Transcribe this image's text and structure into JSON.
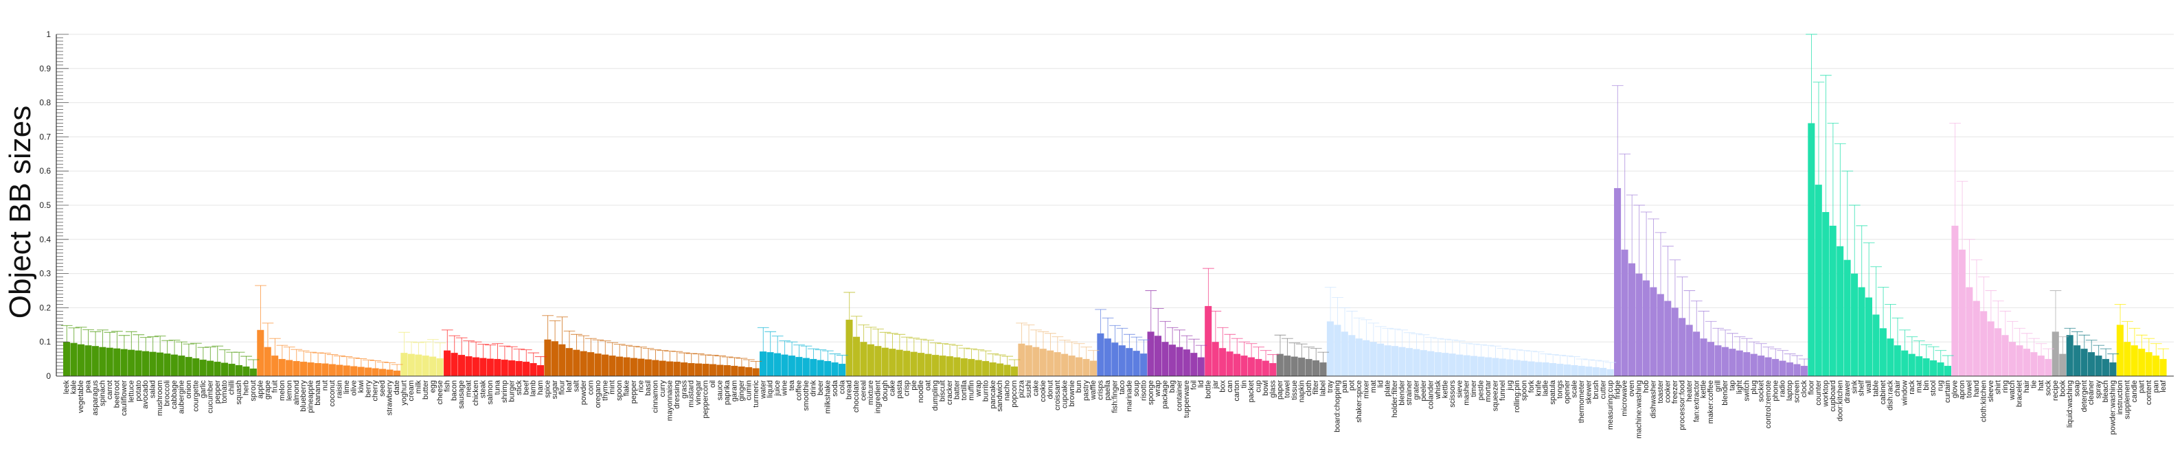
{
  "chart_data": {
    "type": "bar",
    "ylabel": "Object BB sizes",
    "ylim": [
      0,
      1
    ],
    "yticks": [
      "0",
      "0.1",
      "0.2",
      "0.3",
      "0.4",
      "0.5",
      "0.6",
      "0.7",
      "0.8",
      "0.9",
      "1"
    ],
    "grid": true,
    "error_bars": true,
    "groups": [
      {
        "color": "#4b9a09",
        "categories": [
          "leek",
          "kale",
          "vegetable",
          "pea",
          "asparagus",
          "spinach",
          "carrot",
          "beetroot",
          "cauliflower",
          "lettuce",
          "potato",
          "avocado",
          "salad",
          "mushroom",
          "broccoli",
          "cabbage",
          "aubergine",
          "onion",
          "courgette",
          "garlic",
          "cucumber",
          "pepper",
          "tomato",
          "chilli",
          "squash",
          "herb",
          "sprout"
        ],
        "values": [
          0.1,
          0.097,
          0.093,
          0.09,
          0.088,
          0.085,
          0.083,
          0.081,
          0.079,
          0.077,
          0.075,
          0.073,
          0.071,
          0.069,
          0.066,
          0.063,
          0.06,
          0.056,
          0.052,
          0.048,
          0.045,
          0.042,
          0.039,
          0.036,
          0.032,
          0.028,
          0.022
        ],
        "errors": [
          0.048,
          0.044,
          0.05,
          0.046,
          0.042,
          0.05,
          0.045,
          0.05,
          0.04,
          0.053,
          0.046,
          0.04,
          0.044,
          0.048,
          0.038,
          0.042,
          0.04,
          0.038,
          0.044,
          0.036,
          0.04,
          0.046,
          0.038,
          0.034,
          0.038,
          0.03,
          0.026
        ]
      },
      {
        "color": "#fb8d2e",
        "categories": [
          "apple",
          "grape",
          "fruit",
          "melon",
          "lemon",
          "almond",
          "blueberry",
          "pineapple",
          "banana",
          "nut",
          "coconut",
          "raisin",
          "lime",
          "olive",
          "kiwi",
          "berry",
          "cherry",
          "seed",
          "strawberry",
          "date"
        ],
        "values": [
          0.135,
          0.085,
          0.06,
          0.05,
          0.047,
          0.044,
          0.042,
          0.04,
          0.038,
          0.037,
          0.035,
          0.033,
          0.031,
          0.029,
          0.027,
          0.025,
          0.023,
          0.021,
          0.019,
          0.016
        ],
        "errors": [
          0.13,
          0.07,
          0.05,
          0.04,
          0.038,
          0.034,
          0.032,
          0.03,
          0.03,
          0.03,
          0.028,
          0.026,
          0.026,
          0.024,
          0.024,
          0.022,
          0.022,
          0.02,
          0.02,
          0.018
        ]
      },
      {
        "color": "#f2ee84",
        "categories": [
          "yoghurt",
          "cream",
          "milk",
          "butter",
          "egg",
          "cheese"
        ],
        "values": [
          0.068,
          0.065,
          0.063,
          0.06,
          0.057,
          0.052
        ],
        "errors": [
          0.06,
          0.035,
          0.035,
          0.04,
          0.05,
          0.045
        ]
      },
      {
        "color": "#ff1f1f",
        "categories": [
          "fish",
          "bacon",
          "sausage",
          "meat",
          "chicken",
          "steak",
          "salmon",
          "tuna",
          "shrimp",
          "burger",
          "stick",
          "beef",
          "lamb",
          "ham"
        ],
        "values": [
          0.075,
          0.068,
          0.062,
          0.058,
          0.055,
          0.053,
          0.051,
          0.05,
          0.048,
          0.046,
          0.044,
          0.042,
          0.038,
          0.032
        ],
        "errors": [
          0.06,
          0.05,
          0.05,
          0.045,
          0.045,
          0.04,
          0.04,
          0.045,
          0.04,
          0.04,
          0.035,
          0.035,
          0.03,
          0.025
        ]
      },
      {
        "color": "#cd6608",
        "categories": [
          "spice",
          "sugar",
          "flour",
          "leaf",
          "salt",
          "powder",
          "corn",
          "oregano",
          "thyme",
          "mint",
          "spoon",
          "flake",
          "pepper",
          "rice",
          "basil",
          "cinnamon",
          "curry",
          "mayonnaise",
          "dressing",
          "grass",
          "mustard",
          "vinegar",
          "peppercorn",
          "oil",
          "sauce",
          "paprika",
          "garam",
          "ginger",
          "cumin",
          "turmeric"
        ],
        "values": [
          0.107,
          0.102,
          0.093,
          0.082,
          0.077,
          0.073,
          0.07,
          0.066,
          0.063,
          0.06,
          0.057,
          0.055,
          0.053,
          0.051,
          0.049,
          0.047,
          0.045,
          0.043,
          0.042,
          0.04,
          0.038,
          0.037,
          0.036,
          0.035,
          0.033,
          0.032,
          0.03,
          0.028,
          0.026,
          0.023
        ],
        "errors": [
          0.07,
          0.06,
          0.08,
          0.05,
          0.045,
          0.045,
          0.04,
          0.04,
          0.04,
          0.038,
          0.036,
          0.035,
          0.034,
          0.034,
          0.032,
          0.03,
          0.03,
          0.03,
          0.03,
          0.028,
          0.028,
          0.028,
          0.026,
          0.026,
          0.026,
          0.024,
          0.024,
          0.024,
          0.022,
          0.02
        ]
      },
      {
        "color": "#0fb5d6",
        "categories": [
          "water",
          "liquid",
          "juice",
          "wine",
          "tea",
          "coffee",
          "smoothie",
          "drink",
          "beer",
          "milkshake",
          "soda",
          "cola"
        ],
        "values": [
          0.072,
          0.07,
          0.067,
          0.063,
          0.06,
          0.056,
          0.053,
          0.05,
          0.047,
          0.044,
          0.04,
          0.036
        ],
        "errors": [
          0.07,
          0.06,
          0.05,
          0.04,
          0.04,
          0.035,
          0.035,
          0.03,
          0.03,
          0.03,
          0.025,
          0.025
        ]
      },
      {
        "color": "#bcbd22",
        "categories": [
          "bread",
          "chocolate",
          "cereal",
          "mixture",
          "ingredient",
          "dough",
          "cake",
          "pasta",
          "crisp",
          "pie",
          "noodle",
          "oat",
          "dumpling",
          "biscuit",
          "cracker",
          "batter",
          "tortilla",
          "muffin",
          "wrap",
          "burrito",
          "pancake",
          "sandwich",
          "nacho",
          "popcorn"
        ],
        "values": [
          0.165,
          0.115,
          0.1,
          0.093,
          0.088,
          0.083,
          0.08,
          0.077,
          0.074,
          0.071,
          0.068,
          0.065,
          0.062,
          0.06,
          0.058,
          0.055,
          0.052,
          0.05,
          0.047,
          0.044,
          0.04,
          0.037,
          0.033,
          0.028
        ],
        "errors": [
          0.08,
          0.06,
          0.05,
          0.05,
          0.05,
          0.045,
          0.045,
          0.045,
          0.04,
          0.04,
          0.04,
          0.04,
          0.035,
          0.035,
          0.035,
          0.035,
          0.03,
          0.03,
          0.03,
          0.03,
          0.025,
          0.025,
          0.025,
          0.02
        ]
      },
      {
        "color": "#efbf84",
        "categories": [
          "pizza",
          "sushi",
          "cake",
          "cookie",
          "donut",
          "croissant",
          "cupcake",
          "brownie",
          "bun",
          "pastry",
          "waffle"
        ],
        "values": [
          0.095,
          0.09,
          0.085,
          0.08,
          0.075,
          0.07,
          0.065,
          0.06,
          0.055,
          0.05,
          0.045
        ],
        "errors": [
          0.06,
          0.06,
          0.05,
          0.05,
          0.05,
          0.045,
          0.04,
          0.04,
          0.04,
          0.035,
          0.03
        ]
      },
      {
        "color": "#5d7ee0",
        "categories": [
          "crisps",
          "paella",
          "fish:finger",
          "taco",
          "marinade",
          "soup",
          "risotto"
        ],
        "values": [
          0.125,
          0.11,
          0.098,
          0.09,
          0.082,
          0.074,
          0.066
        ],
        "errors": [
          0.07,
          0.06,
          0.05,
          0.05,
          0.04,
          0.04,
          0.04
        ]
      },
      {
        "color": "#9a3fb0",
        "categories": [
          "sponge",
          "wrap",
          "package",
          "bag",
          "container",
          "tupperware",
          "foil",
          "lid"
        ],
        "values": [
          0.13,
          0.118,
          0.1,
          0.092,
          0.085,
          0.078,
          0.068,
          0.055
        ],
        "errors": [
          0.12,
          0.08,
          0.06,
          0.05,
          0.05,
          0.04,
          0.04,
          0.035
        ]
      },
      {
        "color": "#f53f88",
        "categories": [
          "bottle",
          "jar",
          "box",
          "can",
          "carton",
          "tin",
          "packet",
          "cup",
          "bowl",
          "glass"
        ],
        "values": [
          0.205,
          0.1,
          0.082,
          0.072,
          0.065,
          0.06,
          0.055,
          0.05,
          0.045,
          0.038
        ],
        "errors": [
          0.11,
          0.09,
          0.06,
          0.05,
          0.045,
          0.04,
          0.04,
          0.035,
          0.03,
          0.025
        ]
      },
      {
        "color": "#7f7f7f",
        "categories": [
          "paper",
          "towel",
          "tissue",
          "napkin",
          "cloth",
          "filter",
          "label"
        ],
        "values": [
          0.065,
          0.06,
          0.057,
          0.054,
          0.05,
          0.046,
          0.04
        ],
        "errors": [
          0.055,
          0.05,
          0.04,
          0.04,
          0.035,
          0.035,
          0.03
        ]
      },
      {
        "color": "#cfe6ff",
        "categories": [
          "tray",
          "board:chopping",
          "pan",
          "pot",
          "shaker:spice",
          "mixer",
          "mat",
          "lid",
          "plate",
          "holder:filter",
          "blender",
          "strainer",
          "grater",
          "peeler",
          "colander",
          "whisk",
          "kettle",
          "scissors",
          "sieve",
          "masher",
          "timer",
          "pestle",
          "mortar",
          "squeezer",
          "funnel",
          "jug",
          "rolling:pin",
          "spoon",
          "fork",
          "knife",
          "ladle",
          "spatula",
          "tongs",
          "opener",
          "scale",
          "thermometer",
          "skewer",
          "brush",
          "cutter",
          "measuring:cup"
        ],
        "values": [
          0.16,
          0.15,
          0.13,
          0.12,
          0.11,
          0.105,
          0.1,
          0.095,
          0.09,
          0.088,
          0.085,
          0.082,
          0.079,
          0.076,
          0.073,
          0.07,
          0.068,
          0.066,
          0.063,
          0.061,
          0.059,
          0.057,
          0.055,
          0.053,
          0.051,
          0.049,
          0.047,
          0.045,
          0.043,
          0.041,
          0.04,
          0.038,
          0.036,
          0.034,
          0.032,
          0.03,
          0.028,
          0.026,
          0.024,
          0.02
        ],
        "errors": [
          0.1,
          0.08,
          0.07,
          0.07,
          0.06,
          0.06,
          0.055,
          0.05,
          0.05,
          0.05,
          0.05,
          0.045,
          0.045,
          0.045,
          0.04,
          0.04,
          0.04,
          0.04,
          0.04,
          0.035,
          0.035,
          0.035,
          0.035,
          0.035,
          0.03,
          0.03,
          0.03,
          0.03,
          0.03,
          0.03,
          0.025,
          0.025,
          0.025,
          0.025,
          0.025,
          0.02,
          0.02,
          0.02,
          0.02,
          0.02
        ]
      },
      {
        "color": "#a785db",
        "categories": [
          "fridge",
          "microwave",
          "oven",
          "machine:washing",
          "hob",
          "dishwasher",
          "toaster",
          "cooker",
          "freezer",
          "processor:food",
          "heater",
          "fan:extractor",
          "kettle",
          "maker:coffee",
          "grill",
          "blender",
          "tap",
          "light",
          "switch",
          "plug",
          "socket",
          "control:remote",
          "phone",
          "radio",
          "laptop",
          "screen",
          "clock"
        ],
        "values": [
          0.55,
          0.37,
          0.33,
          0.3,
          0.28,
          0.26,
          0.24,
          0.22,
          0.2,
          0.17,
          0.15,
          0.13,
          0.11,
          0.1,
          0.09,
          0.085,
          0.08,
          0.075,
          0.07,
          0.065,
          0.06,
          0.055,
          0.05,
          0.045,
          0.04,
          0.035,
          0.03
        ],
        "errors": [
          0.3,
          0.28,
          0.2,
          0.2,
          0.2,
          0.2,
          0.18,
          0.16,
          0.14,
          0.12,
          0.1,
          0.09,
          0.08,
          0.06,
          0.05,
          0.05,
          0.045,
          0.04,
          0.04,
          0.035,
          0.035,
          0.03,
          0.03,
          0.03,
          0.025,
          0.025,
          0.02
        ]
      },
      {
        "color": "#20e0ac",
        "categories": [
          "floor",
          "counter",
          "worktop",
          "cupboard",
          "door:kitchen",
          "drawer",
          "sink",
          "shelf",
          "wall",
          "table",
          "cabinet",
          "dish:rack",
          "chair",
          "window",
          "rack",
          "mat",
          "bin",
          "stool",
          "rug",
          "curtain"
        ],
        "values": [
          0.74,
          0.56,
          0.48,
          0.44,
          0.38,
          0.34,
          0.3,
          0.26,
          0.23,
          0.18,
          0.14,
          0.11,
          0.09,
          0.075,
          0.065,
          0.058,
          0.052,
          0.046,
          0.04,
          0.03
        ],
        "errors": [
          0.26,
          0.3,
          0.4,
          0.3,
          0.3,
          0.26,
          0.2,
          0.18,
          0.16,
          0.14,
          0.12,
          0.1,
          0.08,
          0.06,
          0.05,
          0.045,
          0.04,
          0.04,
          0.035,
          0.03
        ]
      },
      {
        "color": "#f6b8e6",
        "categories": [
          "glove",
          "apron",
          "towel",
          "hand",
          "cloth:kitchen",
          "sleeve",
          "shirt",
          "ring",
          "watch",
          "bracelet",
          "hair",
          "tie",
          "hat",
          "sock"
        ],
        "values": [
          0.44,
          0.37,
          0.26,
          0.22,
          0.19,
          0.16,
          0.14,
          0.12,
          0.1,
          0.09,
          0.08,
          0.07,
          0.06,
          0.05
        ],
        "errors": [
          0.3,
          0.2,
          0.14,
          0.12,
          0.1,
          0.09,
          0.08,
          0.07,
          0.06,
          0.05,
          0.045,
          0.04,
          0.035,
          0.03
        ]
      },
      {
        "color": "#aaaaaa",
        "categories": [
          "recipe",
          "book"
        ],
        "values": [
          0.13,
          0.065
        ],
        "errors": [
          0.12,
          0.05
        ]
      },
      {
        "color": "#1f7f8a",
        "categories": [
          "liquid:washing",
          "soap",
          "detergent",
          "cleaner",
          "spray",
          "bleach",
          "powder:washing"
        ],
        "values": [
          0.12,
          0.09,
          0.08,
          0.07,
          0.06,
          0.05,
          0.04
        ],
        "errors": [
          0.02,
          0.04,
          0.04,
          0.035,
          0.03,
          0.03,
          0.025
        ]
      },
      {
        "color": "#ffee00",
        "categories": [
          "instruction",
          "supplement",
          "candle",
          "part",
          "content",
          "pan",
          "leaf"
        ],
        "values": [
          0.15,
          0.1,
          0.09,
          0.08,
          0.07,
          0.06,
          0.05
        ],
        "errors": [
          0.06,
          0.06,
          0.05,
          0.04,
          0.04,
          0.035,
          0.03
        ]
      }
    ]
  }
}
